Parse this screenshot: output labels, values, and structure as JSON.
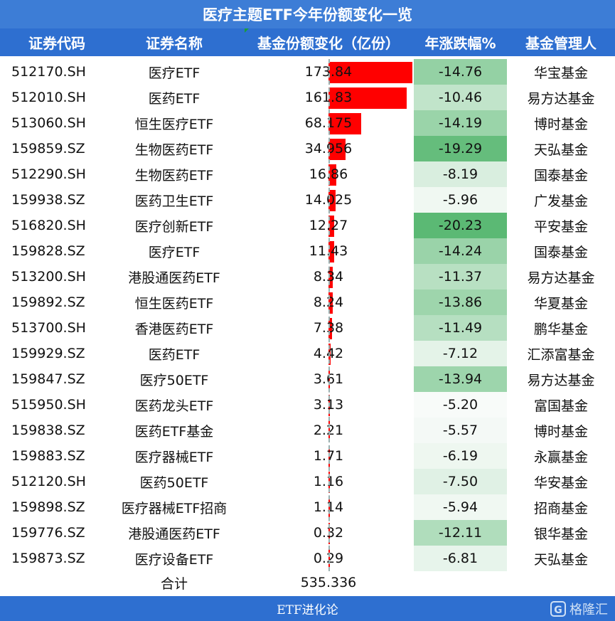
{
  "title": "医疗主题ETF今年份额变化一览",
  "headers": [
    "证券代码",
    "证券名称",
    "基金份额变化（亿份）",
    "年涨跌幅%",
    "基金管理人"
  ],
  "colors": {
    "bar": "#ff0000",
    "green_max": "#5bb974",
    "green_min": "#f8fbf9",
    "header_bg": "#2e6fd0"
  },
  "rows": [
    {
      "code": "512170.SH",
      "name": "医疗ETF",
      "change": "173.84",
      "pct": "-14.76",
      "manager": "华宝基金"
    },
    {
      "code": "512010.SH",
      "name": "医药ETF",
      "change": "161.83",
      "pct": "-10.46",
      "manager": "易方达基金"
    },
    {
      "code": "513060.SH",
      "name": "恒生医疗ETF",
      "change": "68.175",
      "pct": "-14.19",
      "manager": "博时基金"
    },
    {
      "code": "159859.SZ",
      "name": "生物医药ETF",
      "change": "34.956",
      "pct": "-19.29",
      "manager": "天弘基金"
    },
    {
      "code": "512290.SH",
      "name": "生物医药ETF",
      "change": "16.86",
      "pct": "-8.19",
      "manager": "国泰基金"
    },
    {
      "code": "159938.SZ",
      "name": "医药卫生ETF",
      "change": "14.025",
      "pct": "-5.96",
      "manager": "广发基金"
    },
    {
      "code": "516820.SH",
      "name": "医疗创新ETF",
      "change": "12.27",
      "pct": "-20.23",
      "manager": "平安基金"
    },
    {
      "code": "159828.SZ",
      "name": "医疗ETF",
      "change": "11.43",
      "pct": "-14.24",
      "manager": "国泰基金"
    },
    {
      "code": "513200.SH",
      "name": "港股通医药ETF",
      "change": "8.34",
      "pct": "-11.37",
      "manager": "易方达基金"
    },
    {
      "code": "159892.SZ",
      "name": "恒生医药ETF",
      "change": "8.24",
      "pct": "-13.86",
      "manager": "华夏基金"
    },
    {
      "code": "513700.SH",
      "name": "香港医药ETF",
      "change": "7.38",
      "pct": "-11.49",
      "manager": "鹏华基金"
    },
    {
      "code": "159929.SZ",
      "name": "医药ETF",
      "change": "4.42",
      "pct": "-7.12",
      "manager": "汇添富基金"
    },
    {
      "code": "159847.SZ",
      "name": "医疗50ETF",
      "change": "3.61",
      "pct": "-13.94",
      "manager": "易方达基金"
    },
    {
      "code": "515950.SH",
      "name": "医药龙头ETF",
      "change": "3.13",
      "pct": "-5.20",
      "manager": "富国基金"
    },
    {
      "code": "159838.SZ",
      "name": "医药ETF基金",
      "change": "2.21",
      "pct": "-5.57",
      "manager": "博时基金"
    },
    {
      "code": "159883.SZ",
      "name": "医疗器械ETF",
      "change": "1.71",
      "pct": "-6.19",
      "manager": "永赢基金"
    },
    {
      "code": "512120.SH",
      "name": "医药50ETF",
      "change": "1.16",
      "pct": "-7.50",
      "manager": "华安基金"
    },
    {
      "code": "159898.SZ",
      "name": "医疗器械ETF招商",
      "change": "1.14",
      "pct": "-5.94",
      "manager": "招商基金"
    },
    {
      "code": "159776.SZ",
      "name": "港股通医药ETF",
      "change": "0.32",
      "pct": "-12.11",
      "manager": "银华基金"
    },
    {
      "code": "159873.SZ",
      "name": "医疗设备ETF",
      "change": "0.29",
      "pct": "-6.81",
      "manager": "天弘基金"
    }
  ],
  "total": {
    "label": "合计",
    "value": "535.336"
  },
  "footer": {
    "text": "ETF进化论",
    "logo": "格隆汇",
    "logo_glyph": "G"
  }
}
